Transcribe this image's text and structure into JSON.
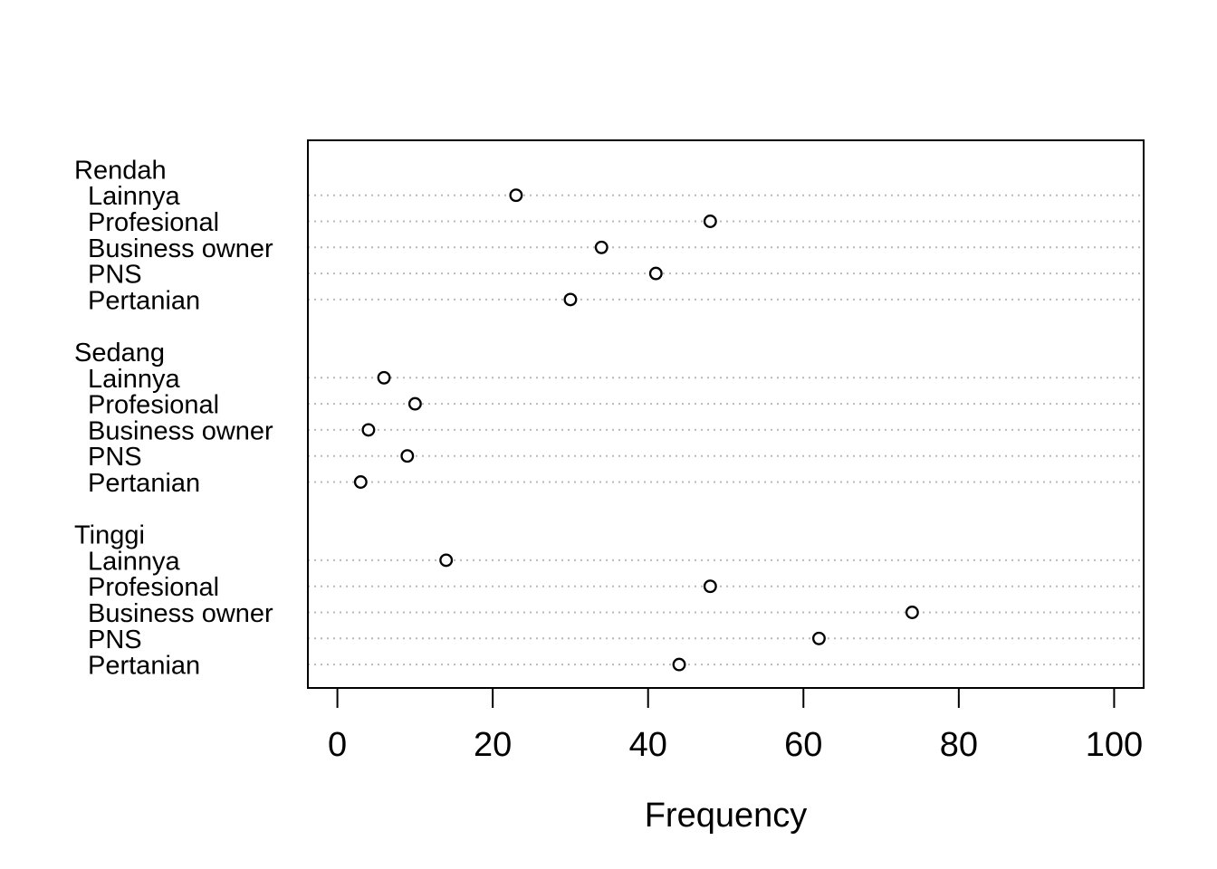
{
  "figure": {
    "background": "#ffffff"
  },
  "chart_data": {
    "type": "scatter",
    "variant": "grouped-cleveland-dot-plot",
    "title": "",
    "xlabel": "Frequency",
    "ylabel": "",
    "x_ticks": [
      0,
      20,
      40,
      60,
      80,
      100
    ],
    "xlim": [
      -3.8,
      103.8
    ],
    "grid": "dotted-horizontal",
    "legend": "none",
    "colors": {
      "point_stroke": "#000000",
      "point_fill": "#ffffff",
      "grid": "#b9b9b9",
      "axis": "#000000",
      "text": "#000000"
    },
    "groups": [
      {
        "name": "Rendah",
        "items": [
          {
            "label": "Lainnya",
            "value": 23
          },
          {
            "label": "Profesional",
            "value": 48
          },
          {
            "label": "Business owner",
            "value": 34
          },
          {
            "label": "PNS",
            "value": 41
          },
          {
            "label": "Pertanian",
            "value": 30
          }
        ]
      },
      {
        "name": "Sedang",
        "items": [
          {
            "label": "Lainnya",
            "value": 6
          },
          {
            "label": "Profesional",
            "value": 10
          },
          {
            "label": "Business owner",
            "value": 4
          },
          {
            "label": "PNS",
            "value": 9
          },
          {
            "label": "Pertanian",
            "value": 3
          }
        ]
      },
      {
        "name": "Tinggi",
        "items": [
          {
            "label": "Lainnya",
            "value": 14
          },
          {
            "label": "Profesional",
            "value": 48
          },
          {
            "label": "Business owner",
            "value": 74
          },
          {
            "label": "PNS",
            "value": 62
          },
          {
            "label": "Pertanian",
            "value": 44
          }
        ]
      }
    ]
  }
}
